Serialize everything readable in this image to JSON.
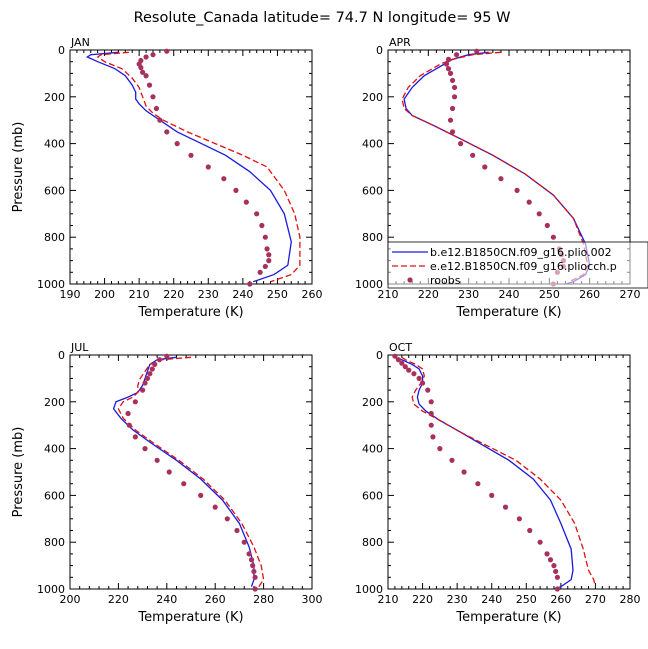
{
  "figure": {
    "title": "Resolute_Canada   latitude= 74.7 N longitude= 95 W"
  },
  "chart_data": [
    {
      "type": "line",
      "panel": "JAN",
      "title": "JAN",
      "xlabel": "Temperature (K)",
      "ylabel": "Pressure (mb)",
      "xlim": [
        190,
        260
      ],
      "ylim": [
        1000,
        0
      ],
      "xticks": [
        190,
        200,
        210,
        220,
        230,
        240,
        250,
        260
      ],
      "yticks": [
        0,
        200,
        400,
        600,
        800,
        1000
      ],
      "series": [
        {
          "name": "b.e12.B1850CN.f09_g16.plio.002",
          "style": "solid",
          "color": "#1a1adf",
          "x": [
            204,
            196,
            195,
            198,
            203,
            206,
            208,
            209,
            209,
            210,
            212,
            216,
            221,
            228,
            235,
            242,
            248,
            252,
            254,
            253,
            249,
            243
          ],
          "y": [
            10,
            20,
            30,
            50,
            80,
            110,
            150,
            180,
            210,
            230,
            260,
            300,
            350,
            400,
            450,
            520,
            600,
            700,
            820,
            920,
            960,
            990
          ]
        },
        {
          "name": "e.e12.B1850CN.f09_g16.pliocch.p",
          "style": "dashed",
          "color": "#e01010",
          "x": [
            207,
            199,
            198,
            200,
            205,
            208,
            210,
            211,
            212,
            214,
            217,
            224,
            232,
            240,
            247,
            252,
            255,
            256.5,
            256.5,
            254,
            248
          ],
          "y": [
            10,
            20,
            30,
            50,
            80,
            120,
            160,
            200,
            240,
            270,
            300,
            350,
            400,
            450,
            500,
            600,
            700,
            800,
            920,
            960,
            990
          ]
        },
        {
          "name": "roobs",
          "style": "dots",
          "color": "#a8305c",
          "x": [
            218,
            214,
            212,
            210.5,
            210,
            210.5,
            211,
            212,
            213,
            214,
            215,
            216,
            218,
            221,
            225,
            230,
            234.5,
            238,
            241,
            244,
            245.5,
            246.5,
            247,
            247.5,
            247.5,
            246.5,
            245,
            242
          ],
          "y": [
            5,
            20,
            30,
            45,
            60,
            75,
            95,
            110,
            150,
            200,
            250,
            300,
            350,
            400,
            450,
            500,
            550,
            600,
            650,
            700,
            750,
            800,
            850,
            875,
            900,
            925,
            950,
            1000
          ]
        }
      ]
    },
    {
      "type": "line",
      "panel": "APR",
      "title": "APR",
      "xlabel": "Temperature (K)",
      "ylabel": "",
      "xlim": [
        210,
        270
      ],
      "ylim": [
        1000,
        0
      ],
      "xticks": [
        210,
        220,
        230,
        240,
        250,
        260,
        270
      ],
      "yticks": [
        0,
        200,
        400,
        600,
        800,
        1000
      ],
      "legend": {
        "placement": "lower-right"
      },
      "series": [
        {
          "name": "b.e12.B1850CN.f09_g16.plio.002",
          "style": "solid",
          "color": "#1a1adf",
          "x": [
            235,
            230,
            226,
            224,
            222,
            219,
            216,
            214,
            214.5,
            216,
            221,
            228,
            236,
            244,
            251,
            256,
            259,
            260,
            259,
            256,
            254
          ],
          "y": [
            10,
            20,
            40,
            60,
            80,
            110,
            160,
            210,
            250,
            280,
            320,
            380,
            450,
            530,
            620,
            720,
            830,
            920,
            960,
            990,
            1000
          ]
        },
        {
          "name": "e.e12.B1850CN.f09_g16.pliocch.p",
          "style": "dashed",
          "color": "#e01010",
          "x": [
            238,
            231,
            226,
            223,
            221,
            218,
            215,
            213.5,
            214,
            216,
            221,
            228,
            236,
            244,
            251,
            256,
            258.5,
            259.5,
            258.5,
            255
          ],
          "y": [
            10,
            20,
            40,
            60,
            80,
            110,
            160,
            210,
            250,
            280,
            320,
            380,
            450,
            530,
            620,
            720,
            830,
            920,
            960,
            990
          ]
        },
        {
          "name": "roobs",
          "style": "dots",
          "color": "#a8305c",
          "x": [
            232,
            227,
            225,
            224.5,
            225,
            225.5,
            226,
            226.5,
            226.5,
            226,
            225.5,
            226,
            228,
            231,
            234,
            238,
            242,
            245,
            247.5,
            249.5,
            251,
            252.5,
            253,
            253.5,
            253.5,
            252,
            251
          ],
          "y": [
            5,
            20,
            40,
            60,
            80,
            100,
            130,
            160,
            200,
            250,
            300,
            350,
            400,
            450,
            500,
            550,
            600,
            650,
            700,
            750,
            800,
            850,
            875,
            900,
            925,
            950,
            1000
          ]
        }
      ]
    },
    {
      "type": "line",
      "panel": "JUL",
      "title": "JUL",
      "xlabel": "Temperature (K)",
      "ylabel": "Pressure (mb)",
      "xlim": [
        200,
        300
      ],
      "ylim": [
        1000,
        0
      ],
      "xticks": [
        200,
        220,
        240,
        260,
        280,
        300
      ],
      "yticks": [
        0,
        200,
        400,
        600,
        800,
        1000
      ],
      "series": [
        {
          "name": "b.e12.B1850CN.f09_g16.plio.002",
          "style": "solid",
          "color": "#1a1adf",
          "x": [
            244,
            236,
            233,
            232,
            231,
            230,
            228,
            224,
            219,
            218,
            221,
            226,
            234,
            244,
            254,
            263,
            270,
            274,
            276,
            276,
            275
          ],
          "y": [
            10,
            20,
            40,
            70,
            100,
            130,
            160,
            180,
            200,
            230,
            270,
            320,
            380,
            450,
            530,
            620,
            720,
            820,
            900,
            960,
            990
          ]
        },
        {
          "name": "e.e12.B1850CN.f09_g16.pliocch.p",
          "style": "dashed",
          "color": "#e01010",
          "x": [
            250,
            238,
            233,
            231,
            229,
            228,
            228,
            226,
            222,
            220,
            222,
            227,
            235,
            245,
            255,
            264,
            271,
            276,
            279,
            280,
            278
          ],
          "y": [
            10,
            20,
            40,
            70,
            100,
            130,
            160,
            180,
            200,
            230,
            270,
            320,
            380,
            450,
            530,
            620,
            720,
            820,
            900,
            960,
            990
          ]
        },
        {
          "name": "roobs",
          "style": "dots",
          "color": "#a8305c",
          "x": [
            240,
            237,
            235,
            234,
            233,
            232,
            231,
            230,
            227,
            224,
            224.5,
            227,
            231,
            236,
            241,
            247,
            254,
            260,
            265,
            269,
            272,
            274,
            275,
            275.5,
            276,
            276.5,
            276.5
          ],
          "y": [
            5,
            20,
            40,
            60,
            80,
            100,
            120,
            150,
            200,
            250,
            300,
            350,
            400,
            450,
            500,
            550,
            600,
            650,
            700,
            750,
            800,
            850,
            875,
            900,
            925,
            950,
            1000
          ]
        }
      ]
    },
    {
      "type": "line",
      "panel": "OCT",
      "title": "OCT",
      "xlabel": "Temperature (K)",
      "ylabel": "",
      "xlim": [
        210,
        280
      ],
      "ylim": [
        1000,
        0
      ],
      "xticks": [
        210,
        220,
        230,
        240,
        250,
        260,
        270,
        280
      ],
      "yticks": [
        0,
        200,
        400,
        600,
        800,
        1000
      ],
      "series": [
        {
          "name": "b.e12.B1850CN.f09_g16.plio.002",
          "style": "solid",
          "color": "#1a1adf",
          "x": [
            212,
            214,
            217,
            219,
            220,
            220,
            219,
            218.5,
            219,
            221,
            225,
            231,
            238,
            245,
            252,
            257,
            260,
            263,
            263.5,
            263,
            260,
            258
          ],
          "y": [
            10,
            20,
            40,
            60,
            90,
            120,
            150,
            180,
            210,
            240,
            280,
            330,
            390,
            450,
            530,
            620,
            720,
            830,
            920,
            960,
            990,
            1000
          ]
        },
        {
          "name": "e.e12.B1850CN.f09_g16.pliocch.p",
          "style": "dashed",
          "color": "#e01010",
          "x": [
            214,
            215,
            218,
            220,
            220.5,
            219.5,
            218,
            217,
            217.5,
            220,
            225,
            231,
            239,
            247,
            254,
            260,
            264,
            266.5,
            268,
            269.5,
            270
          ],
          "y": [
            10,
            20,
            40,
            60,
            90,
            120,
            150,
            180,
            210,
            240,
            280,
            330,
            390,
            450,
            530,
            620,
            720,
            830,
            920,
            960,
            990
          ]
        },
        {
          "name": "roobs",
          "style": "dots",
          "color": "#a8305c",
          "x": [
            212,
            213,
            214,
            215,
            216,
            217.5,
            219,
            220,
            221.5,
            222.5,
            222.5,
            222.5,
            223,
            225,
            228.5,
            232,
            236,
            240,
            244,
            248,
            251,
            254,
            256,
            257,
            258,
            258.5,
            259,
            259
          ],
          "y": [
            5,
            20,
            35,
            50,
            65,
            80,
            100,
            120,
            150,
            200,
            250,
            300,
            350,
            400,
            450,
            500,
            550,
            600,
            650,
            700,
            750,
            800,
            850,
            875,
            900,
            925,
            950,
            1000
          ]
        }
      ]
    }
  ]
}
